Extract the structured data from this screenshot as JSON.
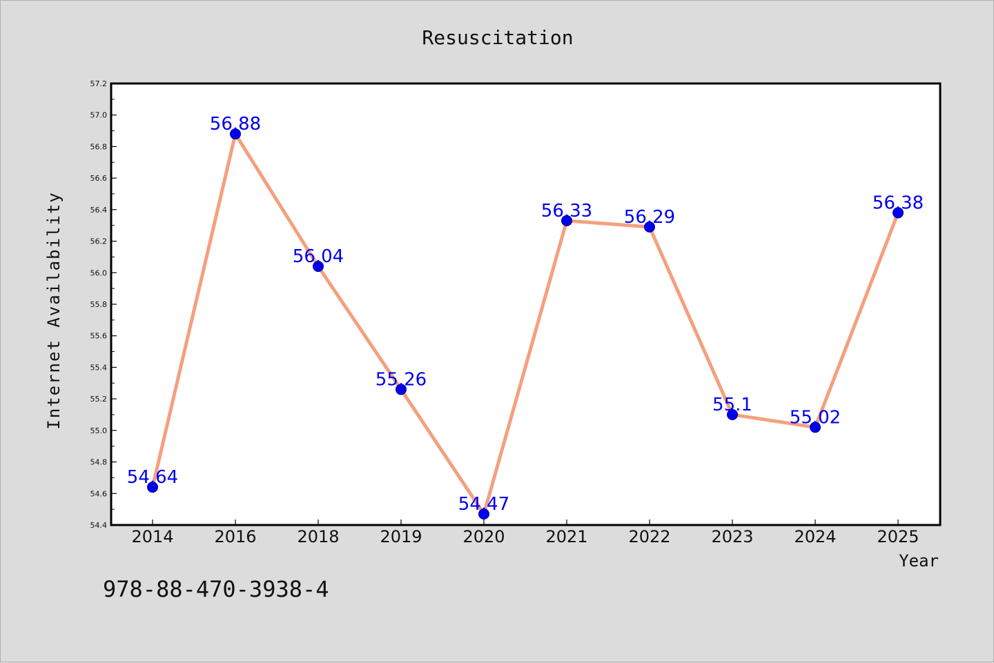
{
  "chart_data": {
    "type": "line",
    "title": "Resuscitation",
    "xlabel": "Year",
    "ylabel": "Internet Availability",
    "categories": [
      "2014",
      "2016",
      "2018",
      "2019",
      "2020",
      "2021",
      "2022",
      "2023",
      "2024",
      "2025"
    ],
    "series": [
      {
        "values": [
          54.64,
          56.88,
          56.04,
          55.26,
          54.47,
          56.33,
          56.29,
          55.1,
          55.02,
          56.38
        ]
      }
    ],
    "data_labels": [
      "54.64",
      "56.88",
      "56.04",
      "55.26",
      "54.47",
      "56.33",
      "56.29",
      "55.1",
      "55.02",
      "56.38"
    ],
    "ylim": [
      54.4,
      57.2
    ],
    "yticks": [
      "54.4",
      "54.6",
      "54.8",
      "55.0",
      "55.2",
      "55.4",
      "55.6",
      "55.8",
      "56.0",
      "56.2",
      "56.4",
      "56.6",
      "56.8",
      "57.0",
      "57.2"
    ],
    "grid": false,
    "legend": "none",
    "colors": {
      "line": "#f4a07e",
      "marker": "#0000ee",
      "label": "#0000ee",
      "background": "#dcdcdc",
      "plot_background": "#ffffff"
    }
  },
  "footer": {
    "isbn": "978-88-470-3938-4"
  }
}
